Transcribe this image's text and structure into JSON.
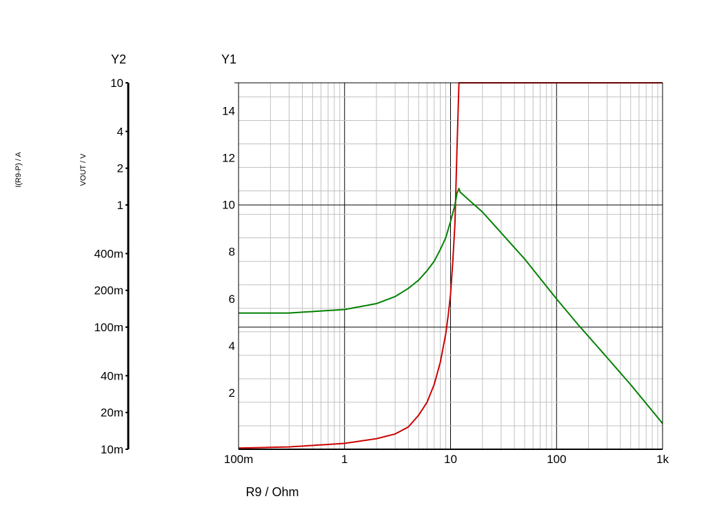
{
  "chart_data": {
    "type": "line",
    "title": "",
    "xlabel": "R9 / Ohm",
    "x_scale": "log",
    "xlim": [
      0.1,
      1000
    ],
    "x_ticks": [
      {
        "value": 0.1,
        "label": "100m"
      },
      {
        "value": 1,
        "label": "1"
      },
      {
        "value": 10,
        "label": "10"
      },
      {
        "value": 100,
        "label": "100"
      },
      {
        "value": 1000,
        "label": "1k"
      }
    ],
    "y1": {
      "header": "Y1",
      "label": "VOUT / V",
      "scale": "linear",
      "lim": [
        0,
        15.6
      ],
      "ticks": [
        {
          "value": 2,
          "label": "2"
        },
        {
          "value": 4,
          "label": "4"
        },
        {
          "value": 6,
          "label": "6"
        },
        {
          "value": 8,
          "label": "8"
        },
        {
          "value": 10,
          "label": "10"
        },
        {
          "value": 12,
          "label": "12"
        },
        {
          "value": 14,
          "label": "14"
        }
      ]
    },
    "y2": {
      "header": "Y2",
      "label": "I(R9-P) / A",
      "scale": "log",
      "lim": [
        0.01,
        10
      ],
      "ticks": [
        {
          "value": 10,
          "label": "10"
        },
        {
          "value": 4,
          "label": "4"
        },
        {
          "value": 2,
          "label": "2"
        },
        {
          "value": 1,
          "label": "1"
        },
        {
          "value": 0.4,
          "label": "400m"
        },
        {
          "value": 0.2,
          "label": "200m"
        },
        {
          "value": 0.1,
          "label": "100m"
        },
        {
          "value": 0.04,
          "label": "40m"
        },
        {
          "value": 0.02,
          "label": "20m"
        },
        {
          "value": 0.01,
          "label": "10m"
        }
      ]
    },
    "grid": true,
    "series": [
      {
        "axis": "y1",
        "color": "#cc0000",
        "x": [
          0.1,
          0.3,
          1,
          2,
          3,
          4,
          5,
          6,
          7,
          8,
          9,
          9.5,
          10,
          10.5,
          11,
          11.5,
          12,
          13,
          20,
          100,
          1000
        ],
        "y": [
          0.05,
          0.1,
          0.25,
          0.45,
          0.65,
          0.95,
          1.45,
          2.0,
          2.75,
          3.7,
          4.9,
          5.7,
          6.6,
          8.0,
          9.6,
          12.8,
          15.6,
          15.6,
          15.6,
          15.6,
          15.6
        ]
      },
      {
        "axis": "y1",
        "color": "#008000",
        "x": [
          0.1,
          0.3,
          1,
          2,
          3,
          4,
          5,
          6,
          7,
          8,
          9,
          10,
          11,
          11.5,
          12,
          12.3,
          15,
          20,
          50,
          100,
          160,
          300,
          500,
          1000
        ],
        "y": [
          5.8,
          5.8,
          5.95,
          6.2,
          6.5,
          6.85,
          7.2,
          7.6,
          8.0,
          8.5,
          9.0,
          9.7,
          10.4,
          10.9,
          11.1,
          10.95,
          10.6,
          10.1,
          8.1,
          6.4,
          5.3,
          3.9,
          2.75,
          1.1
        ]
      }
    ]
  }
}
